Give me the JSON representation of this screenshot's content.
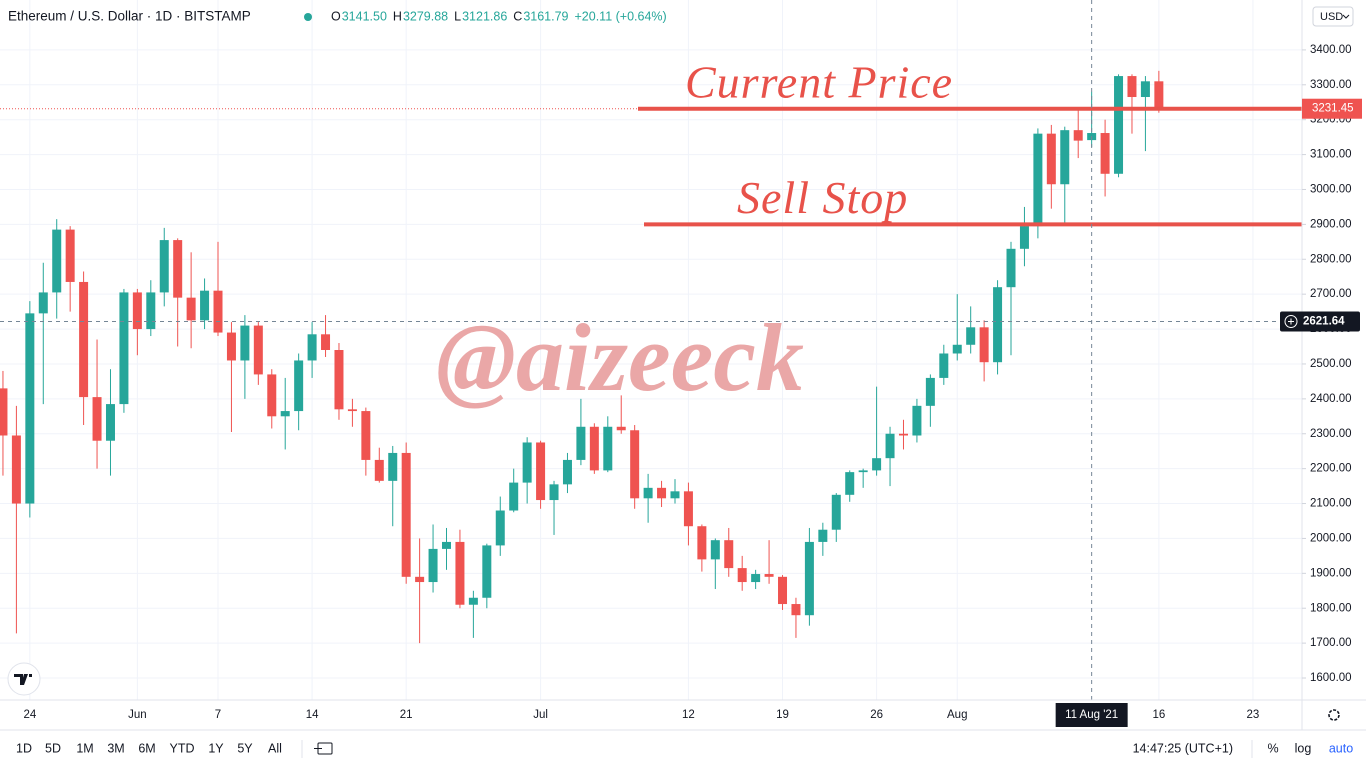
{
  "header": {
    "symbol": "Ethereum / U.S. Dollar · 1D · BITSTAMP",
    "ohlc": [
      {
        "label": "O",
        "value": "3141.50"
      },
      {
        "label": "H",
        "value": "3279.88"
      },
      {
        "label": "L",
        "value": "3121.86"
      },
      {
        "label": "C",
        "value": "3161.79"
      }
    ],
    "change": "+20.11 (+0.64%)"
  },
  "currency": "USD",
  "toolbar": {
    "ranges": [
      "1D",
      "5D",
      "1M",
      "3M",
      "6M",
      "YTD",
      "1Y",
      "5Y",
      "All"
    ],
    "time": "14:47:25 (UTC+1)",
    "options": [
      "%",
      "log",
      "auto"
    ]
  },
  "chart_data": {
    "type": "candlestick",
    "up_color": "#26a69a",
    "down_color": "#ef5350",
    "open": [
      2430,
      2295,
      2100,
      2645,
      2705,
      2885,
      2735,
      2405,
      2280,
      2385,
      2705,
      2600,
      2705,
      2855,
      2690,
      2625,
      2710,
      2590,
      2510,
      2610,
      2470,
      2350,
      2365,
      2510,
      2585,
      2540,
      2370,
      2365,
      2225,
      2165,
      2245,
      1890,
      1875,
      1970,
      1990,
      1810,
      1830,
      1980,
      2080,
      2160,
      2275,
      2110,
      2155,
      2225,
      2320,
      2195,
      2320,
      2310,
      2115,
      2145,
      2115,
      2135,
      2035,
      1940,
      1995,
      1915,
      1875,
      1898,
      1890,
      1812,
      1780,
      1990,
      2025,
      2125,
      2190,
      2195,
      2230,
      2300,
      2295,
      2380,
      2460,
      2530,
      2555,
      2605,
      2505,
      2720,
      2830,
      2895,
      3160,
      3015,
      3170,
      3141.5,
      3161.79,
      3045,
      3325,
      3265,
      3310
    ],
    "high": [
      2480,
      2380,
      2680,
      2790,
      2915,
      2895,
      2765,
      2570,
      2485,
      2715,
      2715,
      2740,
      2890,
      2860,
      2820,
      2745,
      2850,
      2620,
      2640,
      2620,
      2485,
      2460,
      2530,
      2620,
      2640,
      2560,
      2400,
      2375,
      2260,
      2265,
      2275,
      2000,
      2040,
      2030,
      2025,
      1850,
      1985,
      2120,
      2200,
      2290,
      2280,
      2165,
      2245,
      2400,
      2330,
      2350,
      2410,
      2325,
      2185,
      2165,
      2170,
      2160,
      2040,
      2000,
      2030,
      1950,
      1910,
      1995,
      1895,
      1830,
      2030,
      2045,
      2130,
      2195,
      2200,
      2435,
      2320,
      2340,
      2400,
      2470,
      2555,
      2700,
      2665,
      2625,
      2740,
      2850,
      2950,
      3175,
      3185,
      3180,
      3230,
      3279.88,
      3200,
      3330,
      3330,
      3325,
      3340
    ],
    "low": [
      2180,
      1728,
      2060,
      2385,
      2630,
      2650,
      2325,
      2200,
      2180,
      2360,
      2525,
      2580,
      2665,
      2550,
      2545,
      2600,
      2580,
      2305,
      2400,
      2440,
      2315,
      2255,
      2310,
      2460,
      2520,
      2340,
      2320,
      2180,
      2160,
      2035,
      1870,
      1700,
      1845,
      1910,
      1800,
      1715,
      1800,
      1950,
      2075,
      2100,
      2085,
      2010,
      2130,
      2210,
      2185,
      2190,
      2300,
      2085,
      2045,
      2090,
      2100,
      1980,
      1905,
      1855,
      1890,
      1850,
      1855,
      1870,
      1795,
      1715,
      1750,
      1950,
      1990,
      2105,
      2145,
      2180,
      2150,
      2255,
      2275,
      2320,
      2440,
      2510,
      2530,
      2450,
      2470,
      2525,
      2780,
      2860,
      2945,
      2900,
      3090,
      3121.86,
      2980,
      3035,
      3160,
      3110,
      3220
    ],
    "close": [
      2295,
      2100,
      2645,
      2705,
      2885,
      2735,
      2405,
      2280,
      2385,
      2705,
      2600,
      2705,
      2855,
      2690,
      2625,
      2710,
      2590,
      2510,
      2610,
      2470,
      2350,
      2365,
      2510,
      2585,
      2540,
      2370,
      2365,
      2225,
      2165,
      2245,
      1890,
      1875,
      1970,
      1990,
      1810,
      1830,
      1980,
      2080,
      2160,
      2275,
      2110,
      2155,
      2225,
      2320,
      2195,
      2320,
      2310,
      2115,
      2145,
      2115,
      2135,
      2035,
      1940,
      1995,
      1915,
      1875,
      1898,
      1890,
      1812,
      1780,
      1990,
      2025,
      2125,
      2190,
      2195,
      2230,
      2300,
      2295,
      2380,
      2460,
      2530,
      2555,
      2605,
      2505,
      2720,
      2830,
      2895,
      3160,
      3015,
      3170,
      3140,
      3161.79,
      3045,
      3325,
      3265,
      3310,
      3231.45
    ],
    "xlim": [
      -0.22,
      96.65
    ],
    "xticks": [
      {
        "value": 2,
        "label": "24"
      },
      {
        "value": 10,
        "label": "Jun"
      },
      {
        "value": 16,
        "label": "7"
      },
      {
        "value": 23,
        "label": "14"
      },
      {
        "value": 30,
        "label": "21"
      },
      {
        "value": 40,
        "label": "Jul"
      },
      {
        "value": 51,
        "label": "12"
      },
      {
        "value": 58,
        "label": "19"
      },
      {
        "value": 65,
        "label": "26"
      },
      {
        "value": 71,
        "label": "Aug"
      },
      {
        "value": 86,
        "label": "16"
      },
      {
        "value": 93,
        "label": "23"
      }
    ],
    "ylim": [
      1537,
      3543
    ],
    "yticks": [
      {
        "value": 1600,
        "label": "1600.00"
      },
      {
        "value": 1700,
        "label": "1700.00"
      },
      {
        "value": 1800,
        "label": "1800.00"
      },
      {
        "value": 1900,
        "label": "1900.00"
      },
      {
        "value": 2000,
        "label": "2000.00"
      },
      {
        "value": 2100,
        "label": "2100.00"
      },
      {
        "value": 2200,
        "label": "2200.00"
      },
      {
        "value": 2300,
        "label": "2300.00"
      },
      {
        "value": 2400,
        "label": "2400.00"
      },
      {
        "value": 2500,
        "label": "2500.00"
      },
      {
        "value": 2600,
        "label": "2600.00"
      },
      {
        "value": 2700,
        "label": "2700.00"
      },
      {
        "value": 2800,
        "label": "2800.00"
      },
      {
        "value": 2900,
        "label": "2900.00"
      },
      {
        "value": 3000,
        "label": "3000.00"
      },
      {
        "value": 3100,
        "label": "3100.00"
      },
      {
        "value": 3200,
        "label": "3200.00"
      },
      {
        "value": 3300,
        "label": "3300.00"
      },
      {
        "value": 3400,
        "label": "3400.00"
      }
    ],
    "grid": true,
    "last_price": 3231.45,
    "crosshair": {
      "x": 81,
      "x_label": "11 Aug '21",
      "y": 2621.64
    },
    "annotations": [
      {
        "text": "Current Price",
        "value": 3231.45,
        "color": "#e8524a"
      },
      {
        "text": "Sell Stop",
        "value": 2900,
        "color": "#e8524a"
      }
    ],
    "watermark": "@aizeeck"
  }
}
